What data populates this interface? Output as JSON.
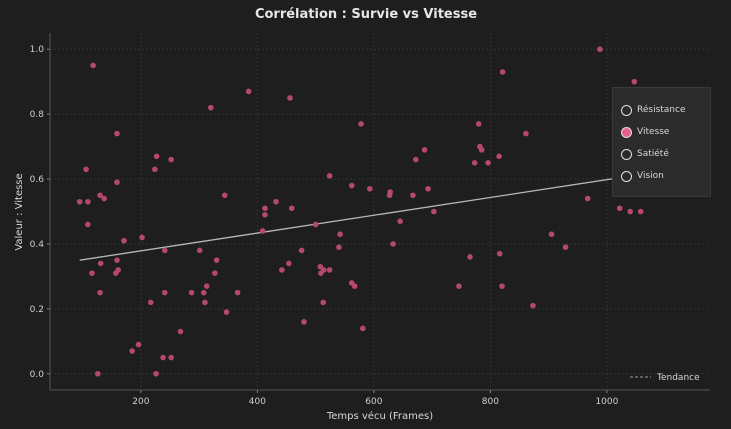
{
  "chart_data": {
    "type": "scatter",
    "title": "Corrélation : Survie vs Vitesse",
    "xlabel": "Temps vécu (Frames)",
    "ylabel": "Valeur : Vitesse",
    "xlim": [
      44,
      1177
    ],
    "ylim": [
      -0.05,
      1.05
    ],
    "xticks": [
      200,
      400,
      600,
      800,
      1000
    ],
    "yticks": [
      0.0,
      0.2,
      0.4,
      0.6,
      0.8,
      1.0
    ],
    "ytick_labels": [
      "0.0",
      "0.2",
      "0.4",
      "0.6",
      "0.8",
      "1.0"
    ],
    "grid": true,
    "point_color": "#b5486e",
    "trend_color": "#b8b8b8",
    "series": [
      {
        "name": "Vitesse",
        "points": [
          [
            118,
            0.95
          ],
          [
            106,
            0.63
          ],
          [
            95,
            0.53
          ],
          [
            109,
            0.53
          ],
          [
            109,
            0.46
          ],
          [
            137,
            0.54
          ],
          [
            130,
            0.55
          ],
          [
            159,
            0.74
          ],
          [
            159,
            0.59
          ],
          [
            116,
            0.31
          ],
          [
            130,
            0.25
          ],
          [
            131,
            0.34
          ],
          [
            159,
            0.35
          ],
          [
            157,
            0.31
          ],
          [
            161,
            0.32
          ],
          [
            171,
            0.41
          ],
          [
            202,
            0.42
          ],
          [
            126,
            0.0
          ],
          [
            185,
            0.07
          ],
          [
            196,
            0.09
          ],
          [
            217,
            0.22
          ],
          [
            224,
            0.63
          ],
          [
            227,
            0.67
          ],
          [
            252,
            0.66
          ],
          [
            241,
            0.38
          ],
          [
            241,
            0.25
          ],
          [
            226,
            0.0
          ],
          [
            238,
            0.05
          ],
          [
            252,
            0.05
          ],
          [
            268,
            0.13
          ],
          [
            287,
            0.25
          ],
          [
            301,
            0.38
          ],
          [
            308,
            0.25
          ],
          [
            310,
            0.22
          ],
          [
            313,
            0.27
          ],
          [
            320,
            0.82
          ],
          [
            327,
            0.31
          ],
          [
            330,
            0.35
          ],
          [
            344,
            0.55
          ],
          [
            347,
            0.19
          ],
          [
            366,
            0.25
          ],
          [
            385,
            0.87
          ],
          [
            409,
            0.44
          ],
          [
            413,
            0.49
          ],
          [
            413,
            0.51
          ],
          [
            432,
            0.53
          ],
          [
            442,
            0.32
          ],
          [
            454,
            0.34
          ],
          [
            456,
            0.85
          ],
          [
            459,
            0.51
          ],
          [
            476,
            0.38
          ],
          [
            480,
            0.16
          ],
          [
            500,
            0.46
          ],
          [
            508,
            0.33
          ],
          [
            509,
            0.31
          ],
          [
            514,
            0.32
          ],
          [
            513,
            0.22
          ],
          [
            524,
            0.61
          ],
          [
            524,
            0.32
          ],
          [
            540,
            0.39
          ],
          [
            542,
            0.43
          ],
          [
            562,
            0.58
          ],
          [
            562,
            0.28
          ],
          [
            567,
            0.27
          ],
          [
            581,
            0.14
          ],
          [
            578,
            0.77
          ],
          [
            593,
            0.57
          ],
          [
            627,
            0.55
          ],
          [
            628,
            0.56
          ],
          [
            633,
            0.4
          ],
          [
            645,
            0.47
          ],
          [
            667,
            0.55
          ],
          [
            672,
            0.66
          ],
          [
            687,
            0.69
          ],
          [
            693,
            0.57
          ],
          [
            703,
            0.5
          ],
          [
            746,
            0.27
          ],
          [
            765,
            0.36
          ],
          [
            773,
            0.65
          ],
          [
            780,
            0.77
          ],
          [
            782,
            0.7
          ],
          [
            785,
            0.69
          ],
          [
            796,
            0.65
          ],
          [
            815,
            0.67
          ],
          [
            816,
            0.37
          ],
          [
            820,
            0.27
          ],
          [
            821,
            0.93
          ],
          [
            861,
            0.74
          ],
          [
            873,
            0.21
          ],
          [
            905,
            0.43
          ],
          [
            929,
            0.39
          ],
          [
            967,
            0.54
          ],
          [
            988,
            1.0
          ],
          [
            1022,
            0.51
          ],
          [
            1040,
            0.5
          ],
          [
            1058,
            0.5
          ],
          [
            1047,
            0.9
          ]
        ]
      }
    ],
    "trend": {
      "label": "Tendance",
      "from": [
        95,
        0.35
      ],
      "to": [
        1058,
        0.614
      ]
    },
    "legend": {
      "placement": "right",
      "items": [
        {
          "label": "Résistance",
          "selected": false
        },
        {
          "label": "Vitesse",
          "selected": true
        },
        {
          "label": "Satiété",
          "selected": false
        },
        {
          "label": "Vision",
          "selected": false
        }
      ]
    }
  }
}
